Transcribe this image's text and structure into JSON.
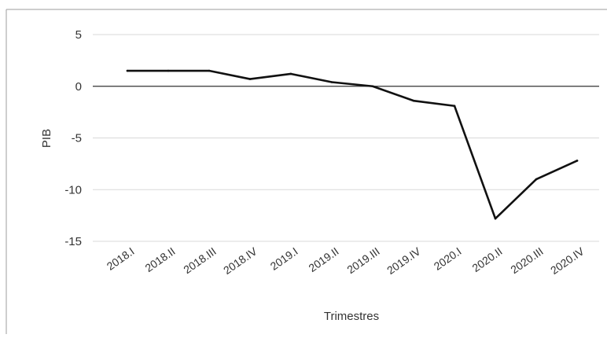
{
  "chart_data": {
    "type": "line",
    "title": "",
    "xlabel": "Trimestres",
    "ylabel": "PIB",
    "categories": [
      "2018.I",
      "2018.II",
      "2018.III",
      "2018.IV",
      "2019.I",
      "2019.II",
      "2019.III",
      "2019.IV",
      "2020.I",
      "2020.II",
      "2020.III",
      "2020.IV"
    ],
    "series": [
      {
        "values": [
          1.5,
          1.5,
          1.5,
          0.7,
          1.2,
          0.4,
          0.0,
          -1.4,
          -1.9,
          -12.8,
          -9.0,
          -7.2
        ]
      }
    ],
    "ylim": [
      -15,
      5
    ],
    "yticks": [
      5,
      0,
      -5,
      -10,
      -15
    ],
    "grid": true,
    "legend": "none",
    "line_color": "#111111",
    "grid_color": "#d9d9d9",
    "zero_line_color": "#333333"
  }
}
